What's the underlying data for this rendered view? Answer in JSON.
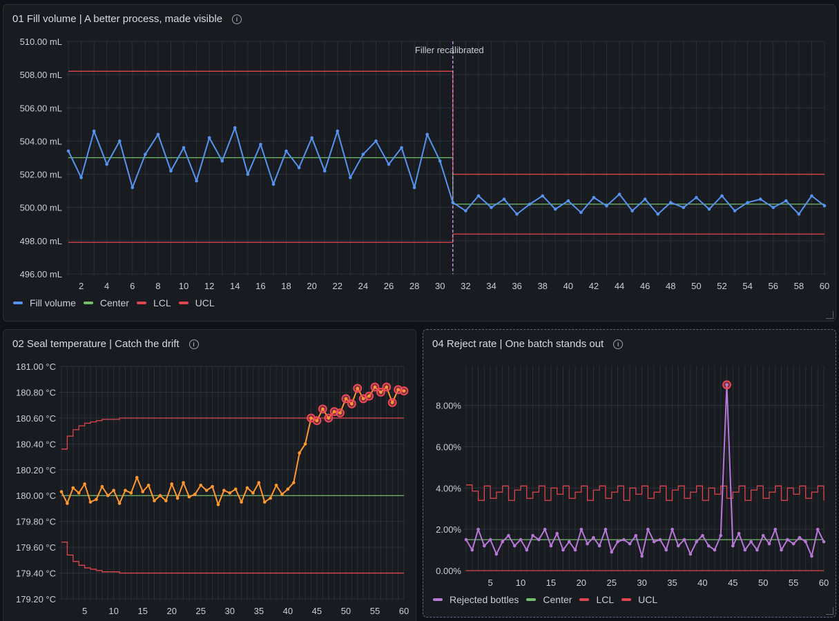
{
  "colors": {
    "background": "#111217",
    "panel": "#181b1f",
    "grid": "#2c3037",
    "axis_text": "#ccccdc",
    "fill_series": "#5794f2",
    "seal_series": "#ff9830",
    "reject_series": "#b877d9",
    "center": "#73bf69",
    "limit": "#e0464f",
    "violation": "#f2495c",
    "annotation": "#d08ce8"
  },
  "panels": [
    {
      "title": "01 Fill volume | A better process, made visible",
      "info_icon": "info-circle-icon",
      "legend": [
        {
          "label": "Fill volume",
          "color": "#5794f2"
        },
        {
          "label": "Center",
          "color": "#73bf69"
        },
        {
          "label": "LCL",
          "color": "#e0464f"
        },
        {
          "label": "UCL",
          "color": "#e0464f"
        }
      ]
    },
    {
      "title": "02 Seal temperature | Catch the drift",
      "info_icon": "info-circle-icon",
      "legend": []
    },
    {
      "title": "04 Reject rate | One batch stands out",
      "info_icon": "info-circle-icon",
      "legend": [
        {
          "label": "Rejected bottles",
          "color": "#b877d9"
        },
        {
          "label": "Center",
          "color": "#73bf69"
        },
        {
          "label": "LCL",
          "color": "#e0464f"
        },
        {
          "label": "UCL",
          "color": "#e0464f"
        }
      ]
    }
  ],
  "chart_data": [
    {
      "type": "line",
      "title": "01 Fill volume | A better process, made visible",
      "unit": "mL",
      "ylim": [
        496,
        510
      ],
      "yticks": [
        "496.00  mL",
        "498.00  mL",
        "500.00  mL",
        "502.00  mL",
        "504.00  mL",
        "506.00  mL",
        "508.00  mL",
        "510.00  mL"
      ],
      "xlim": [
        1,
        60
      ],
      "xticks": [
        2,
        4,
        6,
        8,
        10,
        12,
        14,
        16,
        18,
        20,
        22,
        24,
        26,
        28,
        30,
        32,
        34,
        36,
        38,
        40,
        42,
        44,
        46,
        48,
        50,
        52,
        54,
        56,
        58,
        60
      ],
      "grid": true,
      "legend_position": "bottom-left",
      "annotation": {
        "x": 31,
        "label": "Filler recalibrated"
      },
      "series": [
        {
          "name": "Fill volume",
          "values": [
            503.4,
            501.8,
            504.6,
            502.6,
            504.0,
            501.2,
            503.2,
            504.4,
            502.2,
            503.6,
            501.6,
            504.2,
            502.8,
            504.8,
            502.0,
            503.8,
            501.4,
            503.4,
            502.4,
            504.2,
            502.2,
            504.6,
            501.8,
            503.2,
            504.0,
            502.6,
            503.6,
            501.2,
            504.4,
            502.8,
            500.3,
            499.8,
            500.7,
            500.0,
            500.5,
            499.6,
            500.2,
            500.7,
            499.9,
            500.4,
            499.7,
            500.6,
            500.1,
            500.8,
            499.8,
            500.5,
            499.6,
            500.3,
            500.0,
            500.6,
            499.9,
            500.7,
            499.8,
            500.3,
            500.5,
            500.0,
            500.4,
            499.6,
            500.7,
            500.1
          ]
        },
        {
          "name": "Center",
          "segments": [
            {
              "from": 1,
              "to": 31,
              "value": 503.0
            },
            {
              "from": 31,
              "to": 60,
              "value": 500.2
            }
          ]
        },
        {
          "name": "LCL",
          "segments": [
            {
              "from": 1,
              "to": 31,
              "value": 497.9
            },
            {
              "from": 31,
              "to": 60,
              "value": 498.4
            }
          ]
        },
        {
          "name": "UCL",
          "segments": [
            {
              "from": 1,
              "to": 31,
              "value": 508.2
            },
            {
              "from": 31,
              "to": 60,
              "value": 502.0
            }
          ]
        }
      ]
    },
    {
      "type": "line",
      "title": "02 Seal temperature | Catch the drift",
      "unit": "°C",
      "ylim": [
        179.2,
        181.0
      ],
      "yticks": [
        "179.20 °C",
        "179.40 °C",
        "179.60 °C",
        "179.80 °C",
        "180.00 °C",
        "180.20 °C",
        "180.40 °C",
        "180.60 °C",
        "180.80 °C",
        "181.00 °C"
      ],
      "xlim": [
        1,
        60
      ],
      "xticks": [
        5,
        10,
        15,
        20,
        25,
        30,
        35,
        40,
        45,
        50,
        55,
        60
      ],
      "grid": true,
      "series": [
        {
          "name": "Seal temperature",
          "values": [
            180.03,
            179.94,
            180.06,
            180.02,
            180.09,
            179.95,
            179.97,
            180.07,
            180.0,
            180.04,
            179.94,
            180.04,
            180.02,
            180.14,
            180.03,
            180.08,
            179.96,
            180.0,
            179.96,
            180.09,
            179.98,
            180.1,
            179.99,
            180.01,
            180.08,
            180.04,
            180.07,
            179.93,
            180.04,
            180.02,
            180.05,
            179.95,
            180.06,
            180.02,
            180.1,
            179.95,
            179.98,
            180.08,
            180.01,
            180.05,
            180.1,
            180.33,
            180.4,
            180.6,
            180.58,
            180.67,
            180.6,
            180.65,
            180.64,
            180.75,
            180.71,
            180.83,
            180.75,
            180.77,
            180.84,
            180.8,
            180.84,
            180.72,
            180.82,
            180.81
          ]
        },
        {
          "name": "Center",
          "value": 180.0
        },
        {
          "name": "UCL",
          "values": [
            180.36,
            180.46,
            180.51,
            180.54,
            180.56,
            180.57,
            180.58,
            180.59,
            180.59,
            180.59,
            180.6,
            180.6,
            180.6,
            180.6,
            180.6,
            180.6,
            180.6,
            180.6,
            180.6,
            180.6,
            180.6,
            180.6,
            180.6,
            180.6,
            180.6,
            180.6,
            180.6,
            180.6,
            180.6,
            180.6,
            180.6,
            180.6,
            180.6,
            180.6,
            180.6,
            180.6,
            180.6,
            180.6,
            180.6,
            180.6,
            180.6,
            180.6,
            180.6,
            180.6,
            180.6,
            180.6,
            180.6,
            180.6,
            180.6,
            180.6,
            180.6,
            180.6,
            180.6,
            180.6,
            180.6,
            180.6,
            180.6,
            180.6,
            180.6,
            180.6
          ]
        },
        {
          "name": "LCL",
          "values": [
            179.64,
            179.54,
            179.49,
            179.46,
            179.44,
            179.43,
            179.42,
            179.41,
            179.41,
            179.41,
            179.4,
            179.4,
            179.4,
            179.4,
            179.4,
            179.4,
            179.4,
            179.4,
            179.4,
            179.4,
            179.4,
            179.4,
            179.4,
            179.4,
            179.4,
            179.4,
            179.4,
            179.4,
            179.4,
            179.4,
            179.4,
            179.4,
            179.4,
            179.4,
            179.4,
            179.4,
            179.4,
            179.4,
            179.4,
            179.4,
            179.4,
            179.4,
            179.4,
            179.4,
            179.4,
            179.4,
            179.4,
            179.4,
            179.4,
            179.4,
            179.4,
            179.4,
            179.4,
            179.4,
            179.4,
            179.4,
            179.4,
            179.4,
            179.4,
            179.4
          ]
        }
      ],
      "violations": [
        44,
        45,
        46,
        47,
        48,
        49,
        50,
        51,
        52,
        53,
        54,
        55,
        56,
        57,
        58,
        59,
        60
      ]
    },
    {
      "type": "line",
      "title": "04 Reject rate | One batch stands out",
      "unit": "%",
      "ylim": [
        0,
        9.5
      ],
      "yticks": [
        "0.00%",
        "2.00%",
        "4.00%",
        "6.00%",
        "8.00%"
      ],
      "xlim": [
        1,
        60
      ],
      "xticks": [
        5,
        10,
        15,
        20,
        25,
        30,
        35,
        40,
        45,
        50,
        55,
        60
      ],
      "grid": true,
      "legend_position": "bottom-left",
      "series": [
        {
          "name": "Rejected bottles",
          "values": [
            1.5,
            1.0,
            2.0,
            1.2,
            1.5,
            0.8,
            1.4,
            1.7,
            1.2,
            1.5,
            1.0,
            1.7,
            1.5,
            2.0,
            1.2,
            1.8,
            1.0,
            1.4,
            1.0,
            2.0,
            1.3,
            1.6,
            1.2,
            2.0,
            0.9,
            1.4,
            1.5,
            1.3,
            1.7,
            0.7,
            2.0,
            1.4,
            1.5,
            1.0,
            2.0,
            1.2,
            1.5,
            0.8,
            1.4,
            1.7,
            1.2,
            1.0,
            1.7,
            9.0,
            1.2,
            1.8,
            1.0,
            1.4,
            1.0,
            1.7,
            1.3,
            2.0,
            1.0,
            1.5,
            1.3,
            1.6,
            1.4,
            0.7,
            2.0,
            1.4
          ]
        },
        {
          "name": "Center",
          "value": 1.5
        },
        {
          "name": "LCL",
          "value": 0.0
        },
        {
          "name": "UCL",
          "values": [
            4.15,
            3.85,
            3.4,
            4.1,
            3.5,
            3.8,
            4.1,
            3.4,
            3.9,
            4.1,
            3.5,
            3.8,
            4.1,
            3.4,
            4.0,
            3.7,
            4.1,
            3.5,
            3.8,
            4.1,
            3.4,
            3.9,
            4.1,
            3.5,
            3.8,
            4.1,
            3.4,
            4.0,
            3.7,
            4.1,
            3.5,
            3.8,
            4.1,
            3.4,
            3.9,
            4.1,
            3.5,
            3.8,
            4.1,
            3.4,
            4.0,
            3.7,
            4.1,
            3.5,
            3.8,
            4.1,
            3.4,
            3.9,
            4.1,
            3.5,
            3.8,
            4.1,
            3.4,
            4.0,
            3.7,
            4.1,
            3.5,
            3.8,
            4.1,
            3.4
          ]
        }
      ],
      "violations": [
        44
      ]
    }
  ]
}
